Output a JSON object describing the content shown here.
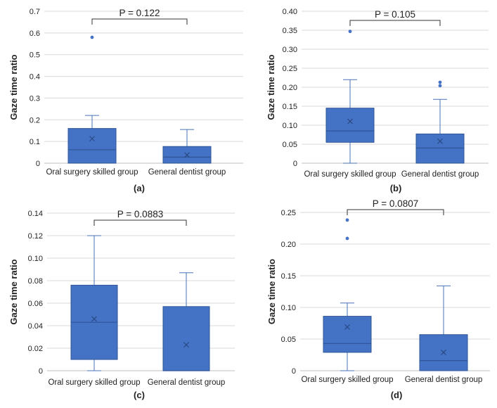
{
  "colors": {
    "box_fill": "#4472c4",
    "box_stroke": "#2f5597",
    "whisker": "#4a72b8",
    "grid": "#d9d9d9",
    "axis": "#bfbfbf",
    "text": "#222222"
  },
  "chart_data": [
    {
      "type": "box",
      "panel_label": "(a)",
      "ylabel": "Gaze time ratio",
      "ylim": [
        0,
        0.7
      ],
      "yticks": [
        0,
        0.1,
        0.2,
        0.3,
        0.4,
        0.5,
        0.6,
        0.7
      ],
      "ytick_labels": [
        "0",
        "0.1",
        "0.2",
        "0.3",
        "0.4",
        "0.5",
        "0.6",
        "0.7"
      ],
      "categories": [
        "Oral surgery skilled group",
        "General dentist group"
      ],
      "boxes": [
        {
          "name": "Oral surgery skilled group",
          "min": 0,
          "q1": 0,
          "median": 0.062,
          "q3": 0.16,
          "max": 0.22,
          "mean": 0.113,
          "outliers": [
            0.58
          ]
        },
        {
          "name": "General dentist group",
          "min": 0,
          "q1": 0,
          "median": 0.028,
          "q3": 0.077,
          "max": 0.155,
          "mean": 0.038,
          "outliers": []
        }
      ],
      "annotation": "P = 0.122"
    },
    {
      "type": "box",
      "panel_label": "(b)",
      "ylabel": "Gaze time ratio",
      "ylim": [
        0,
        0.4
      ],
      "yticks": [
        0,
        0.05,
        0.1,
        0.15,
        0.2,
        0.25,
        0.3,
        0.35,
        0.4
      ],
      "ytick_labels": [
        "0",
        "0.05",
        "0.10",
        "0.15",
        "0.20",
        "0.25",
        "0.30",
        "0.35",
        "0.40"
      ],
      "categories": [
        "Oral surgery skilled group",
        "General dentist group"
      ],
      "boxes": [
        {
          "name": "Oral surgery skilled group",
          "min": 0,
          "q1": 0.055,
          "median": 0.085,
          "q3": 0.145,
          "max": 0.22,
          "mean": 0.11,
          "outliers": [
            0.347
          ]
        },
        {
          "name": "General dentist group",
          "min": 0,
          "q1": 0,
          "median": 0.04,
          "q3": 0.077,
          "max": 0.168,
          "mean": 0.058,
          "outliers": [
            0.204,
            0.213
          ]
        }
      ],
      "annotation": "P = 0.105"
    },
    {
      "type": "box",
      "panel_label": "(c)",
      "ylabel": "Gaze time ratio",
      "ylim": [
        0,
        0.14
      ],
      "yticks": [
        0,
        0.02,
        0.04,
        0.06,
        0.08,
        0.1,
        0.12,
        0.14
      ],
      "ytick_labels": [
        "0",
        "0.02",
        "0.04",
        "0.06",
        "0.08",
        "0.10",
        "0.12",
        "0.14"
      ],
      "categories": [
        "Oral surgery skilled group",
        "General dentist group"
      ],
      "boxes": [
        {
          "name": "Oral surgery skilled group",
          "min": 0,
          "q1": 0.01,
          "median": 0.043,
          "q3": 0.076,
          "max": 0.12,
          "mean": 0.046,
          "outliers": []
        },
        {
          "name": "General dentist group",
          "min": 0,
          "q1": 0,
          "median": 0,
          "q3": 0.057,
          "max": 0.087,
          "mean": 0.023,
          "outliers": []
        }
      ],
      "annotation": "P = 0.0883"
    },
    {
      "type": "box",
      "panel_label": "(d)",
      "ylabel": "Gaze time ratio",
      "ylim": [
        0,
        0.25
      ],
      "yticks": [
        0,
        0.05,
        0.1,
        0.15,
        0.2,
        0.25
      ],
      "ytick_labels": [
        "0",
        "0.05",
        "0.10",
        "0.15",
        "0.20",
        "0.25"
      ],
      "categories": [
        "Oral surgery skilled group",
        "General dentist group"
      ],
      "boxes": [
        {
          "name": "Oral surgery skilled group",
          "min": 0,
          "q1": 0.029,
          "median": 0.043,
          "q3": 0.086,
          "max": 0.107,
          "mean": 0.069,
          "outliers": [
            0.209,
            0.238
          ]
        },
        {
          "name": "General dentist group",
          "min": 0,
          "q1": 0,
          "median": 0.016,
          "q3": 0.057,
          "max": 0.134,
          "mean": 0.029,
          "outliers": []
        }
      ],
      "annotation": "P = 0.0807"
    }
  ]
}
